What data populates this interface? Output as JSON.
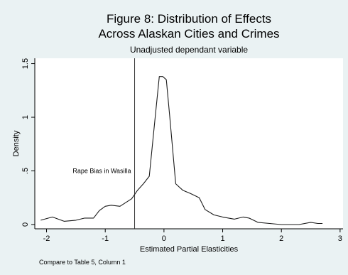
{
  "chart_data": {
    "type": "line",
    "title": "Figure 8: Distribution of Effects",
    "title_line2": "Across Alaskan Cities and Crimes",
    "subtitle": "Unadjusted dependant variable",
    "xlabel": "Estimated Partial Elasticities",
    "ylabel": "Density",
    "note": "Compare to Table 5, Column 1",
    "xlim": [
      -2.2,
      3.05
    ],
    "ylim": [
      -0.04,
      1.55
    ],
    "x_ticks": [
      -2,
      -1,
      0,
      1,
      2,
      3
    ],
    "x_tick_labels": [
      "-2",
      "-1",
      "0",
      "1",
      "2",
      "3"
    ],
    "y_ticks": [
      0,
      0.5,
      1,
      1.5
    ],
    "y_tick_labels": [
      "0",
      ".5",
      "1",
      "1.5"
    ],
    "grid": false,
    "plot_background": "#ffffff",
    "page_background": "#eaf2f3",
    "line_color": "#1a1a1a",
    "vline": {
      "x": -0.5,
      "label": "Rape Bias in Wasilla",
      "label_y": 0.48
    },
    "series": [
      {
        "x": [
          -2.1,
          -1.9,
          -1.7,
          -1.5,
          -1.35,
          -1.2,
          -1.1,
          -1.0,
          -0.9,
          -0.75,
          -0.55,
          -0.45,
          -0.35,
          -0.25,
          -0.15,
          -0.08,
          -0.02,
          0.04,
          0.1,
          0.2,
          0.32,
          0.45,
          0.6,
          0.7,
          0.85,
          1.0,
          1.2,
          1.35,
          1.45,
          1.6,
          1.8,
          2.0,
          2.15,
          2.3,
          2.5,
          2.62,
          2.7
        ],
        "y": [
          0.04,
          0.07,
          0.03,
          0.04,
          0.06,
          0.06,
          0.13,
          0.17,
          0.18,
          0.17,
          0.24,
          0.32,
          0.38,
          0.45,
          1.0,
          1.38,
          1.38,
          1.35,
          1.0,
          0.38,
          0.32,
          0.29,
          0.25,
          0.14,
          0.09,
          0.07,
          0.05,
          0.07,
          0.06,
          0.02,
          0.01,
          0.0,
          0.0,
          0.0,
          0.02,
          0.01,
          0.01
        ]
      }
    ]
  }
}
